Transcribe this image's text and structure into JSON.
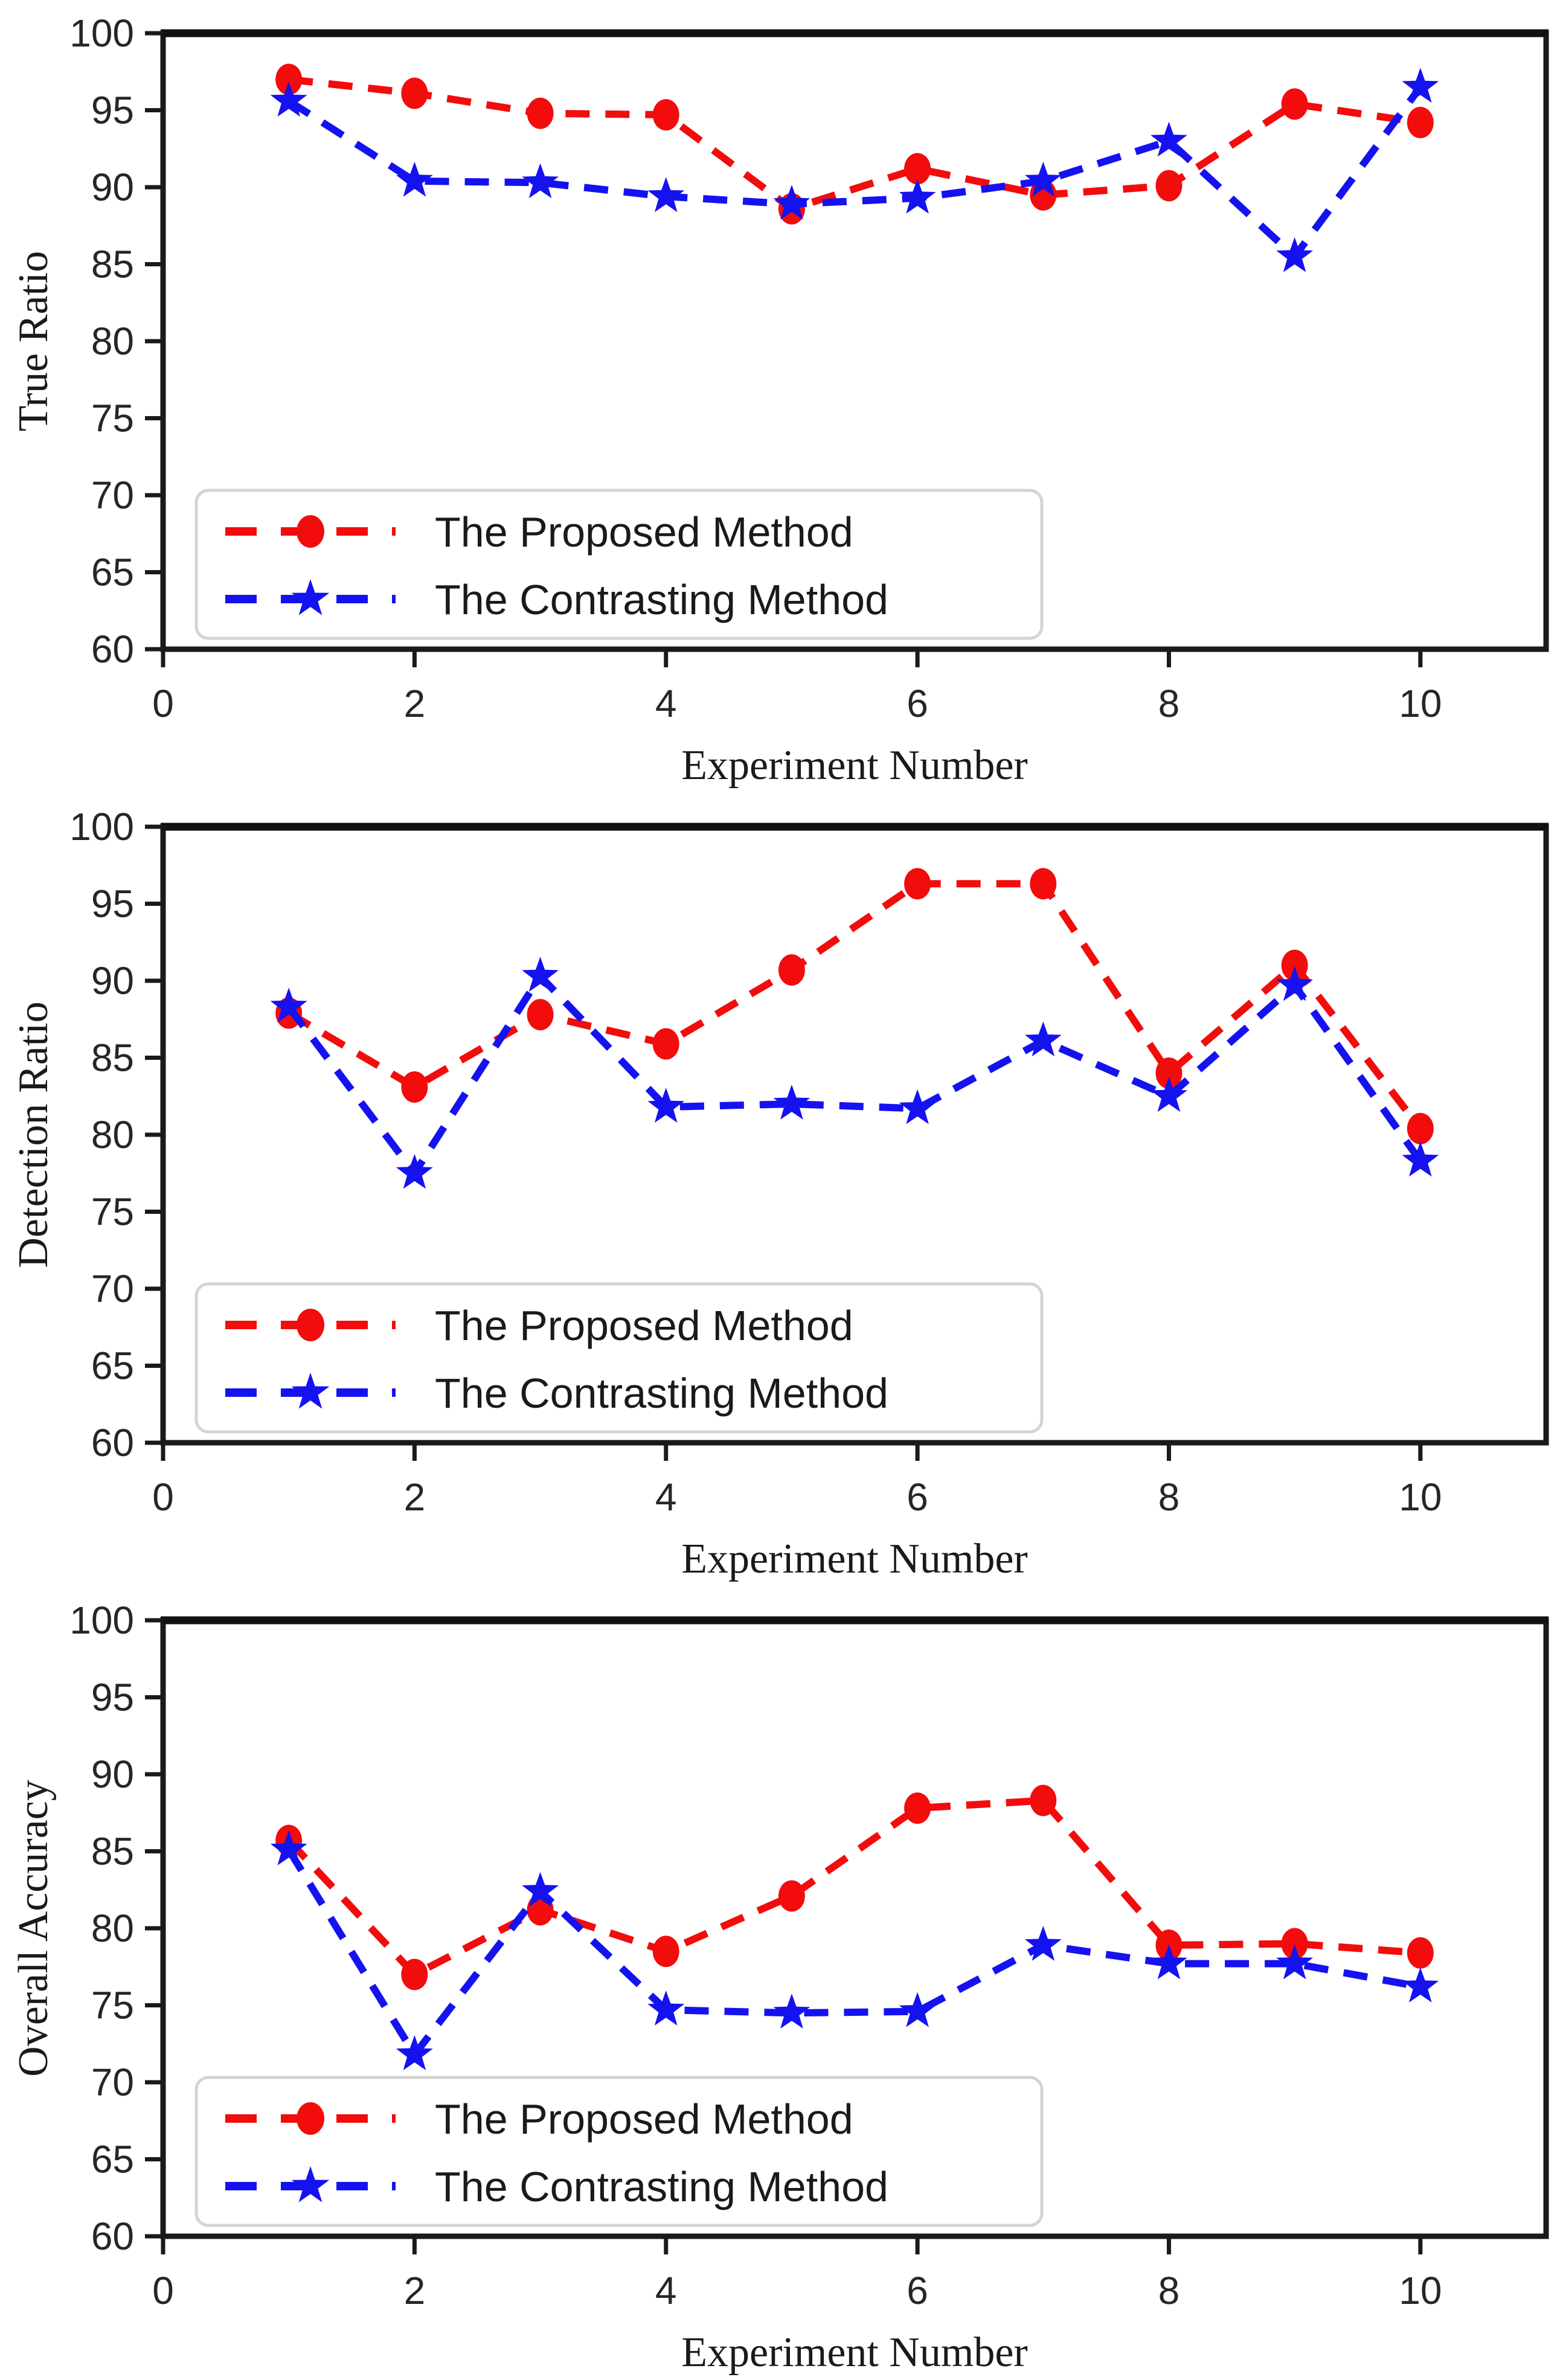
{
  "figure": {
    "background": "#ffffff",
    "axis_color": "#1a1a1a",
    "tick_label_color": "#262626",
    "proposed_color": "#f20c0c",
    "contrast_color": "#1512f0",
    "legend_border_color": "#d4d4d4",
    "legend_background": "#ffffff",
    "legend_items": [
      {
        "label": "The Proposed Method",
        "marker": "circle-icon",
        "color": "#f20c0c"
      },
      {
        "label": "The Contrasting Method",
        "marker": "star-icon",
        "color": "#1512f0"
      }
    ]
  },
  "chart_data": [
    {
      "type": "line",
      "title": "",
      "ylabel": "True Ratio",
      "xlabel": "Experiment Number",
      "x": [
        1,
        2,
        3,
        4,
        5,
        6,
        7,
        8,
        9,
        10
      ],
      "xticks": [
        0,
        2,
        4,
        6,
        8,
        10
      ],
      "xlim": [
        0,
        11
      ],
      "yticks": [
        60,
        65,
        70,
        75,
        80,
        85,
        90,
        95,
        100
      ],
      "ylim": [
        60,
        100
      ],
      "grid": false,
      "legend_position": "lower-left",
      "series": [
        {
          "name": "The Proposed Method",
          "color": "#f20c0c",
          "marker": "circle",
          "linestyle": "dashed",
          "values": [
            97.0,
            96.1,
            94.8,
            94.7,
            88.6,
            91.2,
            89.5,
            90.1,
            95.4,
            94.2
          ]
        },
        {
          "name": "The Contrasting Method",
          "color": "#1512f0",
          "marker": "star",
          "linestyle": "dashed",
          "values": [
            95.6,
            90.4,
            90.3,
            89.4,
            88.9,
            89.3,
            90.4,
            93.0,
            85.5,
            96.5
          ]
        }
      ]
    },
    {
      "type": "line",
      "title": "",
      "ylabel": "Detection Ratio",
      "xlabel": "Experiment Number",
      "x": [
        1,
        2,
        3,
        4,
        5,
        6,
        7,
        8,
        9,
        10
      ],
      "xticks": [
        0,
        2,
        4,
        6,
        8,
        10
      ],
      "xlim": [
        0,
        11
      ],
      "yticks": [
        60,
        65,
        70,
        75,
        80,
        85,
        90,
        95,
        100
      ],
      "ylim": [
        60,
        100
      ],
      "grid": false,
      "legend_position": "lower-left",
      "series": [
        {
          "name": "The Proposed Method",
          "color": "#f20c0c",
          "marker": "circle",
          "linestyle": "dashed",
          "values": [
            87.9,
            83.1,
            87.8,
            85.9,
            90.7,
            96.3,
            96.3,
            84.0,
            91.0,
            80.4
          ]
        },
        {
          "name": "The Contrasting Method",
          "color": "#1512f0",
          "marker": "star",
          "linestyle": "dashed",
          "values": [
            88.3,
            77.5,
            90.3,
            81.8,
            82.0,
            81.7,
            86.1,
            82.5,
            89.7,
            78.3
          ]
        }
      ]
    },
    {
      "type": "line",
      "title": "",
      "ylabel": "Overall Accuracy",
      "xlabel": "Experiment Number",
      "x": [
        1,
        2,
        3,
        4,
        5,
        6,
        7,
        8,
        9,
        10
      ],
      "xticks": [
        0,
        2,
        4,
        6,
        8,
        10
      ],
      "xlim": [
        0,
        11
      ],
      "yticks": [
        60,
        65,
        70,
        75,
        80,
        85,
        90,
        95,
        100
      ],
      "ylim": [
        60,
        100
      ],
      "grid": false,
      "legend_position": "lower-left",
      "series": [
        {
          "name": "The Proposed Method",
          "color": "#f20c0c",
          "marker": "circle",
          "linestyle": "dashed",
          "values": [
            85.7,
            77.0,
            81.2,
            78.5,
            82.1,
            87.8,
            88.3,
            78.9,
            79.0,
            78.4
          ]
        },
        {
          "name": "The Contrasting Method",
          "color": "#1512f0",
          "marker": "star",
          "linestyle": "dashed",
          "values": [
            85.1,
            71.8,
            82.4,
            74.7,
            74.5,
            74.6,
            78.9,
            77.7,
            77.7,
            76.2
          ]
        }
      ]
    }
  ]
}
